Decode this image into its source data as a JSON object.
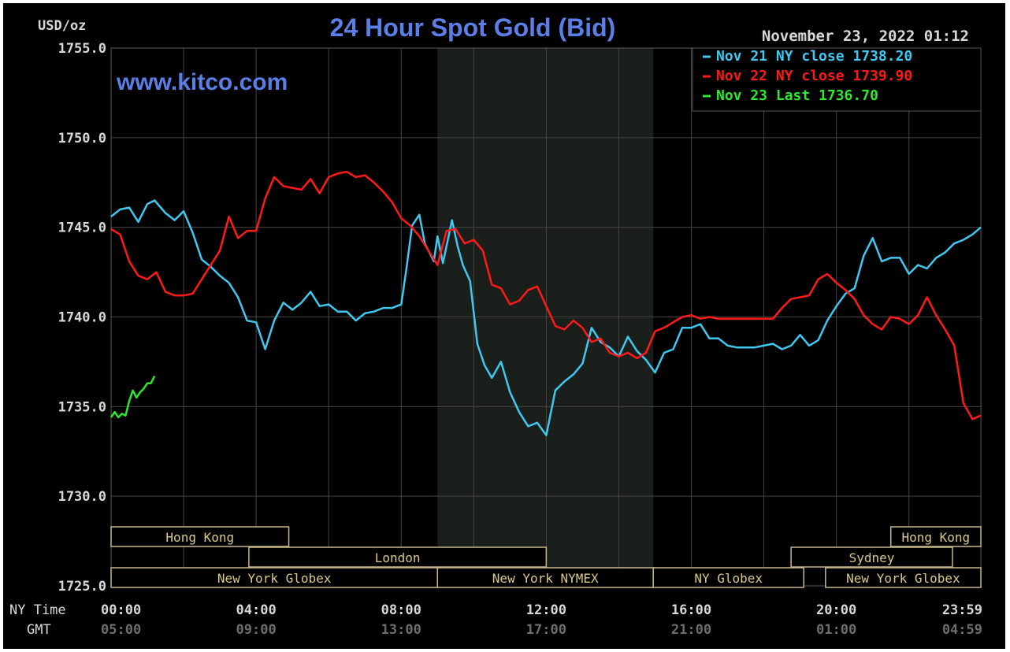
{
  "header": {
    "title": "24 Hour Spot Gold (Bid)",
    "unit_label": "USD/oz",
    "datetime": "November 23, 2022 01:12",
    "website": "www.kitco.com"
  },
  "legend": {
    "items": [
      {
        "label": "Nov 21 NY close 1738.20",
        "color": "#3fc8f0"
      },
      {
        "label": "Nov 22 NY close 1739.90",
        "color": "#ff1a1a"
      },
      {
        "label": "Nov 23 Last 1736.70",
        "color": "#2ee82e"
      }
    ]
  },
  "axis": {
    "ny_time_label": "NY Time",
    "gmt_label": "GMT"
  },
  "sessions": {
    "row1": [
      {
        "label": "Hong Kong",
        "start": 0,
        "end": 4.9
      },
      {
        "label": "Hong Kong",
        "start": 21.5,
        "end": 23.983
      }
    ],
    "row2": [
      {
        "label": "London",
        "start": 3.8,
        "end": 12.0
      },
      {
        "label": "Sydney",
        "start": 18.75,
        "end": 23.2
      }
    ],
    "row3": [
      {
        "label": "New York Globex",
        "start": 0,
        "end": 9.0
      },
      {
        "label": "New York NYMEX",
        "start": 9.0,
        "end": 14.95
      },
      {
        "label": "NY Globex",
        "start": 14.95,
        "end": 19.1
      },
      {
        "label": "New York Globex",
        "start": 19.7,
        "end": 23.983
      }
    ]
  },
  "chart_data": {
    "type": "line",
    "title": "24 Hour Spot Gold (Bid)",
    "ylabel": "USD/oz",
    "ylim": [
      1725.0,
      1755.0
    ],
    "yticks": [
      "1755.0",
      "1750.0",
      "1745.0",
      "1740.0",
      "1735.0",
      "1730.0",
      "1725.0"
    ],
    "xlim": [
      0,
      23.983
    ],
    "xticks_ny": [
      "00:00",
      "04:00",
      "08:00",
      "12:00",
      "16:00",
      "20:00",
      "23:59"
    ],
    "xticks_gmt": [
      "05:00",
      "09:00",
      "13:00",
      "17:00",
      "21:00",
      "01:00",
      "04:59"
    ],
    "grid": true,
    "legend_position": "top-right",
    "shaded_region": [
      9.0,
      14.95
    ],
    "series": [
      {
        "name": "Nov 21 NY close 1738.20",
        "color": "#3fc8f0",
        "x": [
          0,
          0.25,
          0.5,
          0.75,
          1.0,
          1.2,
          1.5,
          1.75,
          2.0,
          2.25,
          2.5,
          2.75,
          3.0,
          3.25,
          3.5,
          3.75,
          4.0,
          4.25,
          4.5,
          4.75,
          5.0,
          5.25,
          5.5,
          5.75,
          6.0,
          6.25,
          6.5,
          6.75,
          7.0,
          7.25,
          7.5,
          7.75,
          8.0,
          8.15,
          8.3,
          8.5,
          8.65,
          8.9,
          9.0,
          9.15,
          9.4,
          9.55,
          9.7,
          9.9,
          10.1,
          10.3,
          10.5,
          10.75,
          11.0,
          11.25,
          11.5,
          11.75,
          12.0,
          12.25,
          12.5,
          12.75,
          13.0,
          13.25,
          13.5,
          13.75,
          14.0,
          14.25,
          14.5,
          14.75,
          15.0,
          15.25,
          15.5,
          15.75,
          16.0,
          16.25,
          16.5,
          16.75,
          17.0,
          17.25,
          17.5,
          17.75,
          18.0,
          18.25,
          18.5,
          18.75,
          19.0,
          19.25,
          19.5,
          19.75,
          20.0,
          20.25,
          20.5,
          20.75,
          21.0,
          21.25,
          21.5,
          21.75,
          22.0,
          22.25,
          22.5,
          22.75,
          23.0,
          23.25,
          23.5,
          23.75,
          23.983
        ],
        "y": [
          1745.6,
          1746.0,
          1746.1,
          1745.3,
          1746.3,
          1746.5,
          1745.8,
          1745.4,
          1745.9,
          1744.7,
          1743.2,
          1742.8,
          1742.3,
          1741.9,
          1741.1,
          1739.8,
          1739.7,
          1738.2,
          1739.8,
          1740.8,
          1740.4,
          1740.8,
          1741.4,
          1740.6,
          1740.7,
          1740.3,
          1740.3,
          1739.8,
          1740.2,
          1740.3,
          1740.5,
          1740.5,
          1740.7,
          1742.8,
          1745.1,
          1745.7,
          1744.1,
          1743.1,
          1744.5,
          1743.0,
          1745.4,
          1744.0,
          1742.9,
          1742.0,
          1738.5,
          1737.3,
          1736.6,
          1737.5,
          1735.8,
          1734.7,
          1733.9,
          1734.1,
          1733.4,
          1735.9,
          1736.4,
          1736.8,
          1737.4,
          1739.4,
          1738.6,
          1738.3,
          1737.8,
          1738.9,
          1738.1,
          1737.6,
          1736.9,
          1738.0,
          1738.2,
          1739.4,
          1739.4,
          1739.6,
          1738.8,
          1738.8,
          1738.4,
          1738.3,
          1738.3,
          1738.3,
          1738.4,
          1738.5,
          1738.2,
          1738.4,
          1739.0,
          1738.4,
          1738.7,
          1739.8,
          1740.6,
          1741.3,
          1741.6,
          1743.4,
          1744.4,
          1743.1,
          1743.3,
          1743.3,
          1742.4,
          1742.9,
          1742.7,
          1743.3,
          1743.6,
          1744.1,
          1744.3,
          1744.6,
          1745.0
        ]
      },
      {
        "name": "Nov 22 NY close 1739.90",
        "color": "#ff1a1a",
        "x": [
          0,
          0.25,
          0.5,
          0.75,
          1.0,
          1.25,
          1.5,
          1.75,
          2.0,
          2.25,
          2.5,
          2.75,
          3.0,
          3.25,
          3.5,
          3.75,
          4.0,
          4.25,
          4.5,
          4.75,
          5.0,
          5.25,
          5.5,
          5.75,
          6.0,
          6.25,
          6.5,
          6.75,
          7.0,
          7.25,
          7.5,
          7.75,
          8.0,
          8.25,
          8.5,
          8.75,
          9.0,
          9.25,
          9.5,
          9.75,
          10.0,
          10.25,
          10.5,
          10.75,
          11.0,
          11.25,
          11.5,
          11.75,
          12.0,
          12.25,
          12.5,
          12.75,
          13.0,
          13.25,
          13.5,
          13.75,
          14.0,
          14.25,
          14.5,
          14.75,
          15.0,
          15.25,
          15.5,
          15.75,
          16.0,
          16.25,
          16.5,
          16.75,
          17.0,
          17.5,
          18.0,
          18.25,
          18.5,
          18.75,
          19.0,
          19.25,
          19.5,
          19.75,
          20.0,
          20.25,
          20.5,
          20.75,
          21.0,
          21.25,
          21.5,
          21.75,
          22.0,
          22.25,
          22.5,
          22.75,
          23.0,
          23.25,
          23.5,
          23.75,
          23.983
        ],
        "y": [
          1744.9,
          1744.6,
          1743.1,
          1742.3,
          1742.1,
          1742.5,
          1741.4,
          1741.2,
          1741.2,
          1741.3,
          1742.1,
          1742.9,
          1743.7,
          1745.6,
          1744.4,
          1744.8,
          1744.8,
          1746.6,
          1747.8,
          1747.3,
          1747.2,
          1747.1,
          1747.7,
          1746.9,
          1747.8,
          1748.0,
          1748.1,
          1747.8,
          1747.9,
          1747.5,
          1747.0,
          1746.4,
          1745.5,
          1745.1,
          1744.5,
          1743.7,
          1742.9,
          1744.8,
          1744.9,
          1744.1,
          1744.3,
          1743.7,
          1741.8,
          1741.6,
          1740.7,
          1740.9,
          1741.5,
          1741.7,
          1740.6,
          1739.5,
          1739.3,
          1739.8,
          1739.4,
          1738.6,
          1738.8,
          1738.0,
          1737.8,
          1738.0,
          1737.7,
          1738.0,
          1739.2,
          1739.4,
          1739.7,
          1740.0,
          1740.1,
          1739.9,
          1740.0,
          1739.9,
          1739.9,
          1739.9,
          1739.9,
          1739.9,
          1740.5,
          1741.0,
          1741.1,
          1741.2,
          1742.1,
          1742.4,
          1741.9,
          1741.5,
          1741.0,
          1740.1,
          1739.6,
          1739.3,
          1740.0,
          1739.9,
          1739.6,
          1740.1,
          1741.1,
          1740.1,
          1739.3,
          1738.4,
          1735.2,
          1734.3,
          1734.5
        ]
      },
      {
        "name": "Nov 23 Last 1736.70",
        "color": "#2ee82e",
        "x": [
          0,
          0.1,
          0.2,
          0.3,
          0.4,
          0.5,
          0.6,
          0.7,
          0.8,
          0.9,
          1.0,
          1.1,
          1.2
        ],
        "y": [
          1734.4,
          1734.7,
          1734.4,
          1734.6,
          1734.5,
          1735.3,
          1735.9,
          1735.5,
          1735.8,
          1736.0,
          1736.3,
          1736.3,
          1736.7
        ]
      }
    ]
  }
}
